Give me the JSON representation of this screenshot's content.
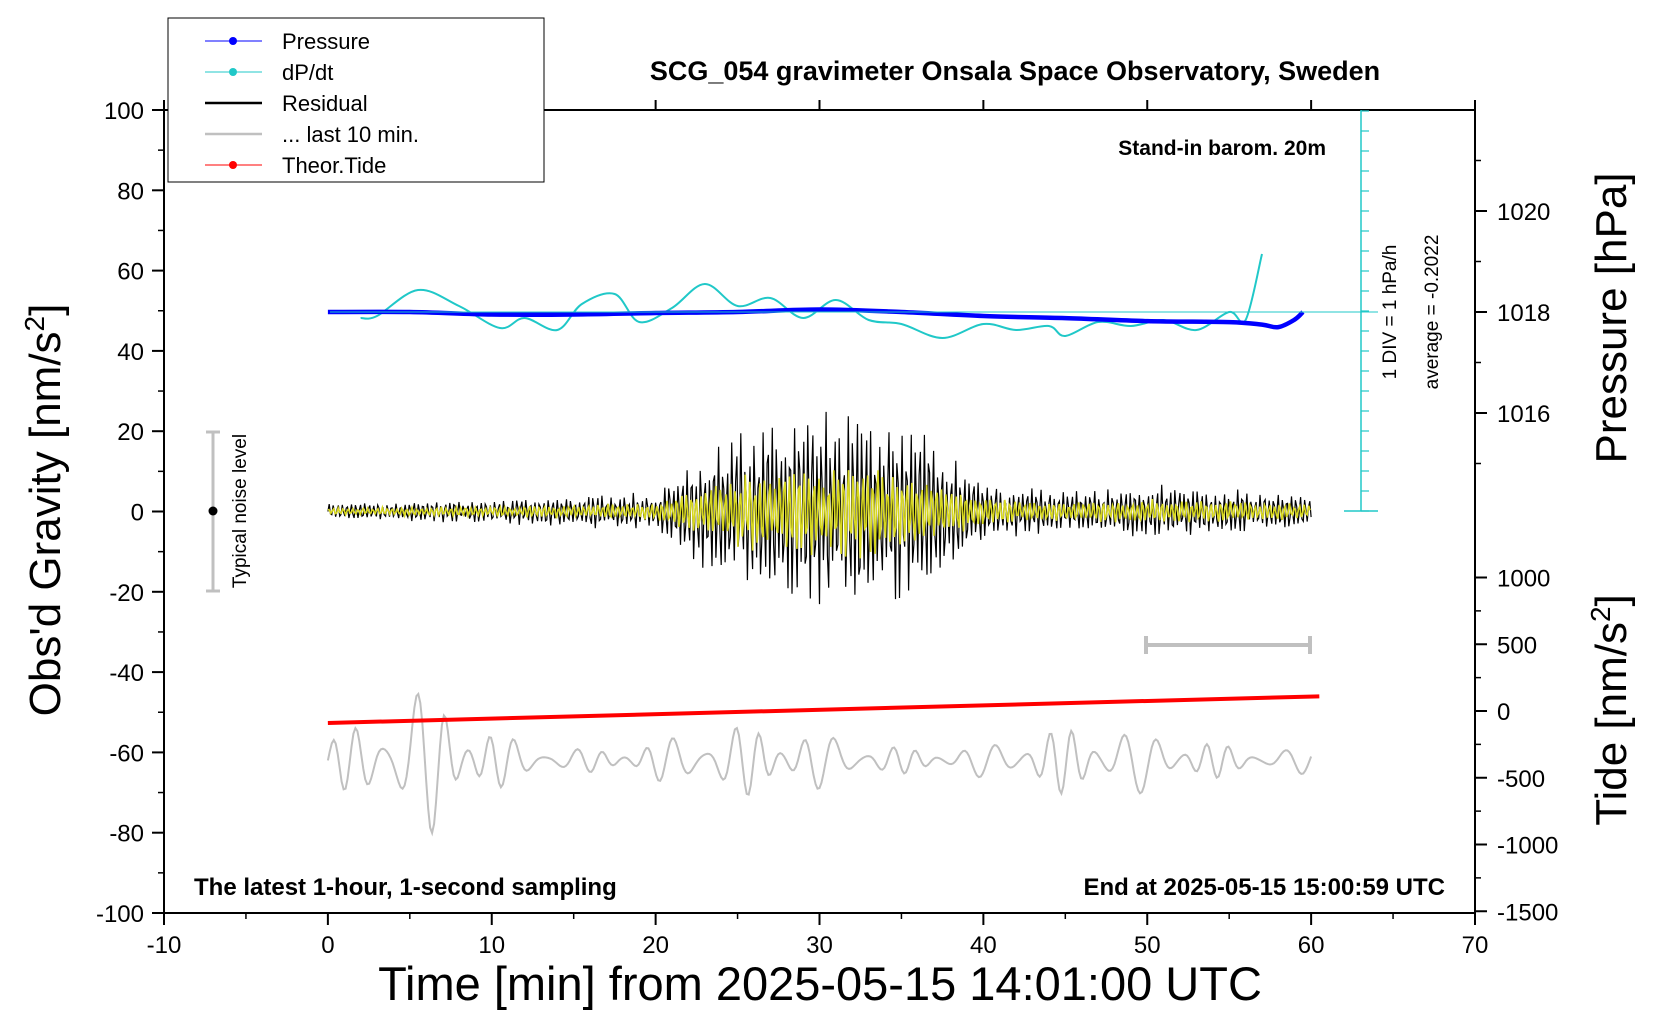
{
  "chart_data": {
    "type": "line",
    "title": "SCG_054 gravimeter Onsala Space Observatory, Sweden",
    "xlabel": "Time [min] from 2025-05-15 14:01:00 UTC",
    "ylabel_main": "Obs'd Gravity [nm/s",
    "ylabel_main_sup": "2",
    "ylabel_main_end": "]",
    "ylabel_pressure": "Pressure [hPa]",
    "ylabel_tide": "Tide [nm/s",
    "ylabel_tide_sup": "2",
    "ylabel_tide_end": "]",
    "xlim": [
      -10,
      70
    ],
    "ylim": [
      -100,
      100
    ],
    "x_ticks": [
      "-10",
      "0",
      "10",
      "20",
      "30",
      "40",
      "50",
      "60",
      "70"
    ],
    "y_ticks": [
      "100",
      "80",
      "60",
      "40",
      "20",
      "0",
      "-20",
      "-40",
      "-60",
      "-80",
      "-100"
    ],
    "pressure_axis": {
      "ticks": [
        "1020",
        "1018",
        "1016"
      ],
      "values": [
        1020,
        1018,
        1016
      ]
    },
    "tide_axis": {
      "ticks": [
        "1000",
        "500",
        "0",
        "-500",
        "-1000",
        "-1500"
      ],
      "values": [
        1000,
        500,
        0,
        -500,
        -1000,
        -1500
      ]
    },
    "legend": [
      {
        "label": "Pressure",
        "color": "#0000ff"
      },
      {
        "label": "dP/dt",
        "color": "#20c8c8"
      },
      {
        "label": "Residual",
        "color": "#000000"
      },
      {
        "label": "... last 10 min.",
        "color": "#c0c0c0"
      },
      {
        "label": "Theor.Tide",
        "color": "#ff0000"
      }
    ],
    "annotations": {
      "barometer": "Stand-in barom. 20m",
      "scale_div": "1 DIV = 1 hPa/h",
      "average": "average = -0.2022",
      "noise": "Typical noise level",
      "bottom_left": "The latest 1-hour, 1-second sampling",
      "bottom_right": "End at 2025-05-15 15:00:59 UTC"
    },
    "series": [
      {
        "name": "Pressure",
        "axis": "pressure",
        "x": [
          0,
          5,
          10,
          15,
          20,
          25,
          30,
          35,
          40,
          45,
          50,
          55,
          57,
          58,
          59,
          59.5
        ],
        "values": [
          1018.0,
          1018.0,
          1017.95,
          1017.95,
          1017.98,
          1018.0,
          1018.05,
          1018.0,
          1017.92,
          1017.88,
          1017.82,
          1017.8,
          1017.75,
          1017.7,
          1017.85,
          1018.0
        ]
      },
      {
        "name": "dP/dt",
        "axis": "dpdt",
        "x": [
          2,
          3,
          5.5,
          8,
          10.5,
          12,
          14,
          15.5,
          17.5,
          19,
          21,
          23,
          25,
          27,
          29,
          31,
          33,
          35,
          37.5,
          40,
          42,
          44,
          45,
          47,
          49,
          51,
          53,
          55,
          56,
          57
        ],
        "values": [
          -0.3,
          -0.2,
          1.1,
          0.3,
          -0.8,
          -0.3,
          -0.9,
          0.4,
          0.9,
          -0.5,
          0.2,
          1.4,
          0.3,
          0.7,
          -0.3,
          0.6,
          -0.4,
          -0.6,
          -1.3,
          -0.6,
          -0.9,
          -0.7,
          -1.2,
          -0.5,
          -0.7,
          -0.4,
          -0.9,
          0.0,
          -0.4,
          2.9
        ]
      },
      {
        "name": "Residual",
        "axis": "gravity",
        "x": [
          0,
          10,
          20,
          24,
          27,
          30,
          33,
          36,
          40,
          45,
          50,
          55,
          60
        ],
        "values": [
          2,
          3,
          5,
          18,
          24,
          26,
          27,
          22,
          8,
          5,
          7,
          6,
          4
        ]
      },
      {
        "name": "Theor.Tide",
        "axis": "tide",
        "x": [
          0,
          60.5
        ],
        "values": [
          -90,
          110
        ]
      },
      {
        "name": "... last 10 min.",
        "axis": "gravity",
        "x": [
          0,
          60
        ],
        "values": [
          -62,
          -62
        ]
      }
    ]
  }
}
